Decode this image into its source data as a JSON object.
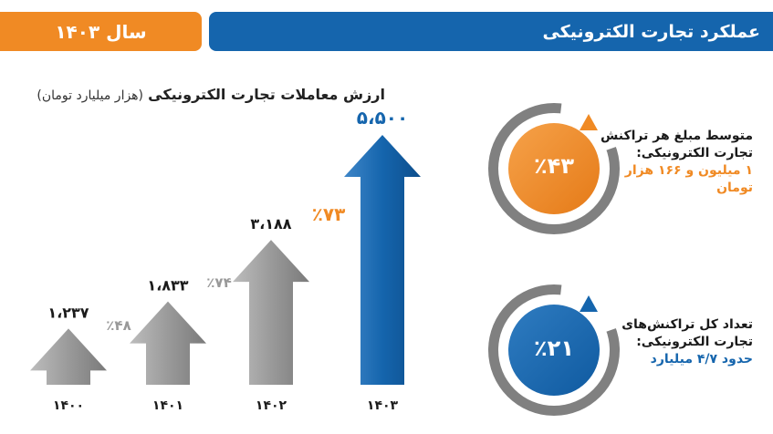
{
  "header": {
    "title": "عملکرد تجارت الکترونیکی",
    "year_label": "سال ۱۴۰۳"
  },
  "chart_data": {
    "type": "bar",
    "title": "ارزش معاملات تجارت الکترونیکی",
    "unit": "(هزار میلیارد تومان)",
    "categories": [
      "۱۴۰۰",
      "۱۴۰۱",
      "۱۴۰۲",
      "۱۴۰۳"
    ],
    "values": [
      1237,
      1833,
      3188,
      5500
    ],
    "value_labels": [
      "۱،۲۳۷",
      "۱،۸۳۳",
      "۳،۱۸۸",
      "۵،۵۰۰"
    ],
    "growth_labels": [
      "٪۴۸",
      "٪۷۴",
      "٪۷۳"
    ],
    "colors": {
      "gray": "#8c8c8c",
      "highlight": "#1565ad",
      "growth_gray": "#999999",
      "growth_orange": "#f08a24"
    }
  },
  "kpis": [
    {
      "title": "متوسط مبلغ هر تراکنش تجارت الکترونیکی:",
      "value": "۱ میلیون و ۱۶۶ هزار تومان",
      "percent": "٪۴۳",
      "color": "#f08a24",
      "icon": "triangle-up-icon"
    },
    {
      "title": "تعداد کل تراکنش‌های تجارت الکترونیکی:",
      "value": "حدود ۴/۷ میلیارد",
      "percent": "٪۲۱",
      "color": "#1565ad",
      "icon": "triangle-up-icon"
    }
  ]
}
